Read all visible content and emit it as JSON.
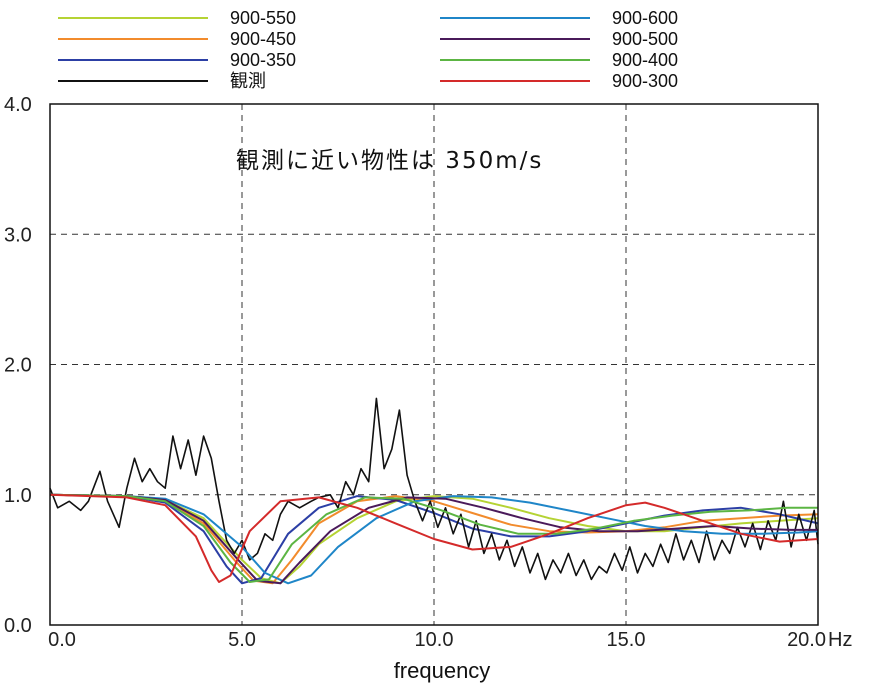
{
  "chart_data": {
    "type": "line",
    "xlabel": "frequency",
    "x_unit": "Hz",
    "ylabel": "",
    "xlim": [
      0,
      20
    ],
    "ylim": [
      0,
      4
    ],
    "x_ticks": [
      "0.0",
      "5.0",
      "10.0",
      "15.0",
      "20.0"
    ],
    "y_ticks": [
      "0.0",
      "1.0",
      "2.0",
      "3.0",
      "4.0"
    ],
    "grid": true,
    "legend_position": "top",
    "annotation": "観測に近い物性は 350m/s",
    "series": [
      {
        "name": "900-550",
        "color": "#b5d334",
        "points": [
          [
            0,
            1.0
          ],
          [
            2,
            0.99
          ],
          [
            3,
            0.96
          ],
          [
            4,
            0.82
          ],
          [
            5,
            0.5
          ],
          [
            5.5,
            0.36
          ],
          [
            6.0,
            0.32
          ],
          [
            6.5,
            0.45
          ],
          [
            7,
            0.62
          ],
          [
            8,
            0.82
          ],
          [
            9,
            0.95
          ],
          [
            10,
            0.99
          ],
          [
            11,
            0.97
          ],
          [
            12,
            0.9
          ],
          [
            13,
            0.82
          ],
          [
            14,
            0.76
          ],
          [
            15,
            0.72
          ],
          [
            16,
            0.72
          ],
          [
            17,
            0.75
          ],
          [
            18,
            0.78
          ],
          [
            19,
            0.8
          ],
          [
            20,
            0.82
          ]
        ]
      },
      {
        "name": "900-450",
        "color": "#f28b2c",
        "points": [
          [
            0,
            1.0
          ],
          [
            2,
            0.99
          ],
          [
            3,
            0.95
          ],
          [
            4,
            0.78
          ],
          [
            4.8,
            0.5
          ],
          [
            5.3,
            0.34
          ],
          [
            5.8,
            0.32
          ],
          [
            6.3,
            0.5
          ],
          [
            7,
            0.78
          ],
          [
            8,
            0.95
          ],
          [
            9,
            0.99
          ],
          [
            10,
            0.95
          ],
          [
            11,
            0.86
          ],
          [
            12,
            0.77
          ],
          [
            13,
            0.72
          ],
          [
            14,
            0.71
          ],
          [
            15,
            0.72
          ],
          [
            16,
            0.75
          ],
          [
            17,
            0.8
          ],
          [
            18,
            0.82
          ],
          [
            19,
            0.84
          ],
          [
            20,
            0.85
          ]
        ]
      },
      {
        "name": "900-350",
        "color": "#2c3fa5",
        "points": [
          [
            0,
            1.0
          ],
          [
            2,
            0.99
          ],
          [
            3,
            0.94
          ],
          [
            4,
            0.72
          ],
          [
            4.6,
            0.45
          ],
          [
            5.0,
            0.32
          ],
          [
            5.5,
            0.36
          ],
          [
            6.2,
            0.7
          ],
          [
            7,
            0.9
          ],
          [
            8,
            0.99
          ],
          [
            9,
            0.96
          ],
          [
            10,
            0.86
          ],
          [
            11,
            0.74
          ],
          [
            12,
            0.68
          ],
          [
            13,
            0.68
          ],
          [
            14,
            0.72
          ],
          [
            15,
            0.78
          ],
          [
            16,
            0.84
          ],
          [
            17,
            0.88
          ],
          [
            18,
            0.9
          ],
          [
            19,
            0.85
          ],
          [
            20,
            0.78
          ]
        ]
      },
      {
        "name": "観測",
        "color": "#111111",
        "points": [
          [
            0,
            1.05
          ],
          [
            0.2,
            0.9
          ],
          [
            0.5,
            0.95
          ],
          [
            0.8,
            0.88
          ],
          [
            1.0,
            0.95
          ],
          [
            1.3,
            1.18
          ],
          [
            1.5,
            0.95
          ],
          [
            1.8,
            0.75
          ],
          [
            2.0,
            1.05
          ],
          [
            2.2,
            1.28
          ],
          [
            2.4,
            1.1
          ],
          [
            2.6,
            1.2
          ],
          [
            2.8,
            1.1
          ],
          [
            3.0,
            1.05
          ],
          [
            3.2,
            1.45
          ],
          [
            3.4,
            1.2
          ],
          [
            3.6,
            1.42
          ],
          [
            3.8,
            1.15
          ],
          [
            4.0,
            1.45
          ],
          [
            4.2,
            1.28
          ],
          [
            4.4,
            0.95
          ],
          [
            4.6,
            0.65
          ],
          [
            4.8,
            0.55
          ],
          [
            5.0,
            0.65
          ],
          [
            5.2,
            0.5
          ],
          [
            5.4,
            0.55
          ],
          [
            5.6,
            0.7
          ],
          [
            5.8,
            0.65
          ],
          [
            6.0,
            0.85
          ],
          [
            6.2,
            0.95
          ],
          [
            6.5,
            0.9
          ],
          [
            6.8,
            0.95
          ],
          [
            7.0,
            0.98
          ],
          [
            7.3,
            1.0
          ],
          [
            7.5,
            0.9
          ],
          [
            7.7,
            1.1
          ],
          [
            7.9,
            1.0
          ],
          [
            8.1,
            1.2
          ],
          [
            8.3,
            1.1
          ],
          [
            8.5,
            1.74
          ],
          [
            8.7,
            1.2
          ],
          [
            8.9,
            1.35
          ],
          [
            9.1,
            1.65
          ],
          [
            9.3,
            1.15
          ],
          [
            9.5,
            0.95
          ],
          [
            9.7,
            0.8
          ],
          [
            9.9,
            0.95
          ],
          [
            10.1,
            0.75
          ],
          [
            10.3,
            0.9
          ],
          [
            10.5,
            0.7
          ],
          [
            10.7,
            0.85
          ],
          [
            10.9,
            0.6
          ],
          [
            11.1,
            0.8
          ],
          [
            11.3,
            0.55
          ],
          [
            11.5,
            0.7
          ],
          [
            11.7,
            0.5
          ],
          [
            11.9,
            0.65
          ],
          [
            12.1,
            0.45
          ],
          [
            12.3,
            0.6
          ],
          [
            12.5,
            0.4
          ],
          [
            12.7,
            0.55
          ],
          [
            12.9,
            0.35
          ],
          [
            13.1,
            0.5
          ],
          [
            13.3,
            0.4
          ],
          [
            13.5,
            0.55
          ],
          [
            13.7,
            0.38
          ],
          [
            13.9,
            0.5
          ],
          [
            14.1,
            0.35
          ],
          [
            14.3,
            0.45
          ],
          [
            14.5,
            0.4
          ],
          [
            14.7,
            0.55
          ],
          [
            14.9,
            0.42
          ],
          [
            15.1,
            0.6
          ],
          [
            15.3,
            0.4
          ],
          [
            15.5,
            0.55
          ],
          [
            15.7,
            0.45
          ],
          [
            15.9,
            0.62
          ],
          [
            16.1,
            0.48
          ],
          [
            16.3,
            0.7
          ],
          [
            16.5,
            0.5
          ],
          [
            16.7,
            0.65
          ],
          [
            16.9,
            0.48
          ],
          [
            17.1,
            0.72
          ],
          [
            17.3,
            0.5
          ],
          [
            17.5,
            0.65
          ],
          [
            17.7,
            0.55
          ],
          [
            17.9,
            0.75
          ],
          [
            18.1,
            0.6
          ],
          [
            18.3,
            0.78
          ],
          [
            18.5,
            0.58
          ],
          [
            18.7,
            0.8
          ],
          [
            18.9,
            0.65
          ],
          [
            19.1,
            0.95
          ],
          [
            19.3,
            0.6
          ],
          [
            19.5,
            0.85
          ],
          [
            19.7,
            0.65
          ],
          [
            19.9,
            0.88
          ],
          [
            20,
            0.62
          ]
        ]
      },
      {
        "name": "900-600",
        "color": "#1f86c8",
        "points": [
          [
            0,
            1.0
          ],
          [
            2,
            0.99
          ],
          [
            3,
            0.97
          ],
          [
            4,
            0.85
          ],
          [
            5,
            0.6
          ],
          [
            5.6,
            0.4
          ],
          [
            6.2,
            0.32
          ],
          [
            6.8,
            0.38
          ],
          [
            7.5,
            0.6
          ],
          [
            8.5,
            0.82
          ],
          [
            9.5,
            0.95
          ],
          [
            10.5,
            0.99
          ],
          [
            11.5,
            0.98
          ],
          [
            12.5,
            0.94
          ],
          [
            13.5,
            0.88
          ],
          [
            14.5,
            0.82
          ],
          [
            15.5,
            0.76
          ],
          [
            16.5,
            0.72
          ],
          [
            17.5,
            0.7
          ],
          [
            18.5,
            0.7
          ],
          [
            19.5,
            0.71
          ],
          [
            20,
            0.72
          ]
        ]
      },
      {
        "name": "900-500",
        "color": "#4a1a5a",
        "points": [
          [
            0,
            1.0
          ],
          [
            2,
            0.99
          ],
          [
            3,
            0.96
          ],
          [
            4,
            0.8
          ],
          [
            4.9,
            0.5
          ],
          [
            5.4,
            0.34
          ],
          [
            6.0,
            0.32
          ],
          [
            6.5,
            0.48
          ],
          [
            7.3,
            0.72
          ],
          [
            8.3,
            0.9
          ],
          [
            9.3,
            0.98
          ],
          [
            10.3,
            0.97
          ],
          [
            11.3,
            0.9
          ],
          [
            12.3,
            0.82
          ],
          [
            13.3,
            0.75
          ],
          [
            14.3,
            0.72
          ],
          [
            15.3,
            0.72
          ],
          [
            16.3,
            0.74
          ],
          [
            17.3,
            0.76
          ],
          [
            18.3,
            0.74
          ],
          [
            19.3,
            0.73
          ],
          [
            20,
            0.73
          ]
        ]
      },
      {
        "name": "900-400",
        "color": "#5cb543",
        "points": [
          [
            0,
            1.0
          ],
          [
            2,
            0.99
          ],
          [
            3,
            0.95
          ],
          [
            4,
            0.76
          ],
          [
            4.7,
            0.48
          ],
          [
            5.2,
            0.33
          ],
          [
            5.7,
            0.35
          ],
          [
            6.3,
            0.62
          ],
          [
            7.2,
            0.85
          ],
          [
            8.2,
            0.98
          ],
          [
            9.2,
            0.97
          ],
          [
            10.2,
            0.88
          ],
          [
            11.2,
            0.77
          ],
          [
            12.2,
            0.7
          ],
          [
            13.2,
            0.7
          ],
          [
            14.2,
            0.74
          ],
          [
            15.2,
            0.8
          ],
          [
            16.2,
            0.84
          ],
          [
            17.2,
            0.87
          ],
          [
            18.2,
            0.88
          ],
          [
            19.2,
            0.9
          ],
          [
            20,
            0.9
          ]
        ]
      },
      {
        "name": "900-300",
        "color": "#d42a2a",
        "points": [
          [
            0,
            1.0
          ],
          [
            2,
            0.98
          ],
          [
            3,
            0.92
          ],
          [
            3.8,
            0.68
          ],
          [
            4.2,
            0.42
          ],
          [
            4.4,
            0.33
          ],
          [
            4.7,
            0.38
          ],
          [
            5.2,
            0.72
          ],
          [
            6,
            0.95
          ],
          [
            7,
            0.98
          ],
          [
            8,
            0.9
          ],
          [
            9,
            0.78
          ],
          [
            10,
            0.66
          ],
          [
            11,
            0.58
          ],
          [
            12,
            0.6
          ],
          [
            13,
            0.7
          ],
          [
            14,
            0.82
          ],
          [
            15,
            0.92
          ],
          [
            15.5,
            0.94
          ],
          [
            16,
            0.9
          ],
          [
            17,
            0.8
          ],
          [
            18,
            0.7
          ],
          [
            19,
            0.64
          ],
          [
            20,
            0.66
          ]
        ]
      }
    ]
  }
}
